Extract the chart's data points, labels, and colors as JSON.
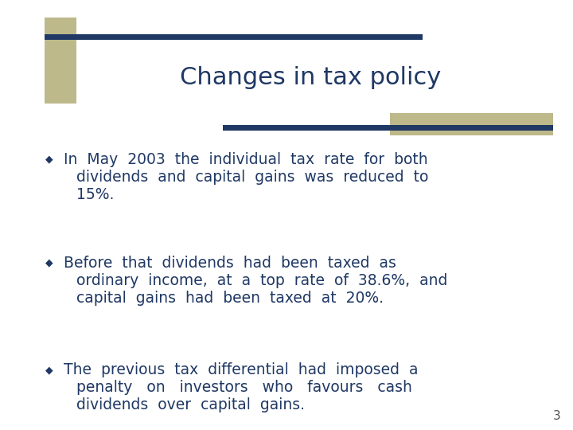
{
  "title": "Changes in tax policy",
  "title_color": "#1F3864",
  "background_color": "#FFFFFF",
  "accent_color_dark": "#1F3864",
  "accent_color_light": "#BDB98A",
  "bullet_lines": [
    [
      "In  May  2003  the  individual  tax  rate  for  both",
      "dividends  and  capital  gains  was  reduced  to",
      "15%."
    ],
    [
      "Before  that  dividends  had  been  taxed  as",
      "ordinary  income,  at  a  top  rate  of  38.6%,  and",
      "capital  gains  had  been  taxed  at  20%."
    ],
    [
      "The  previous  tax  differential  had  imposed  a",
      "penalty   on   investors   who   favours   cash",
      "dividends  over  capital  gains."
    ]
  ],
  "bullet_color": "#1F3864",
  "text_color": "#1F3864",
  "page_number": "3",
  "font_size_title": 22,
  "font_size_body": 13.5
}
